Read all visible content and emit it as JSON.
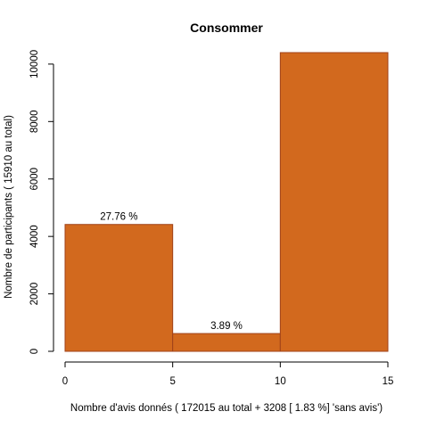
{
  "chart_data": {
    "type": "bar",
    "title": "Consommer",
    "xlabel": "Nombre d'avis donnés ( 172015  au total +  3208 [ 1.83 %]  'sans avis')",
    "ylabel": "Nombre de participants ( 15910  au total)",
    "xlim": [
      0,
      15
    ],
    "ylim": [
      0,
      10400
    ],
    "xticks": [
      0,
      5,
      10,
      15
    ],
    "yticks": [
      0,
      2000,
      4000,
      6000,
      8000,
      10000
    ],
    "bar_color": "#D2691E",
    "bar_edge_color": "#A0421A",
    "bins": [
      {
        "x0": 0,
        "x1": 5,
        "value": 4417,
        "label": "27.76 %"
      },
      {
        "x0": 5,
        "x1": 10,
        "value": 619,
        "label": "3.89 %"
      },
      {
        "x0": 10,
        "x1": 15,
        "value": 10400,
        "label": ""
      }
    ]
  }
}
